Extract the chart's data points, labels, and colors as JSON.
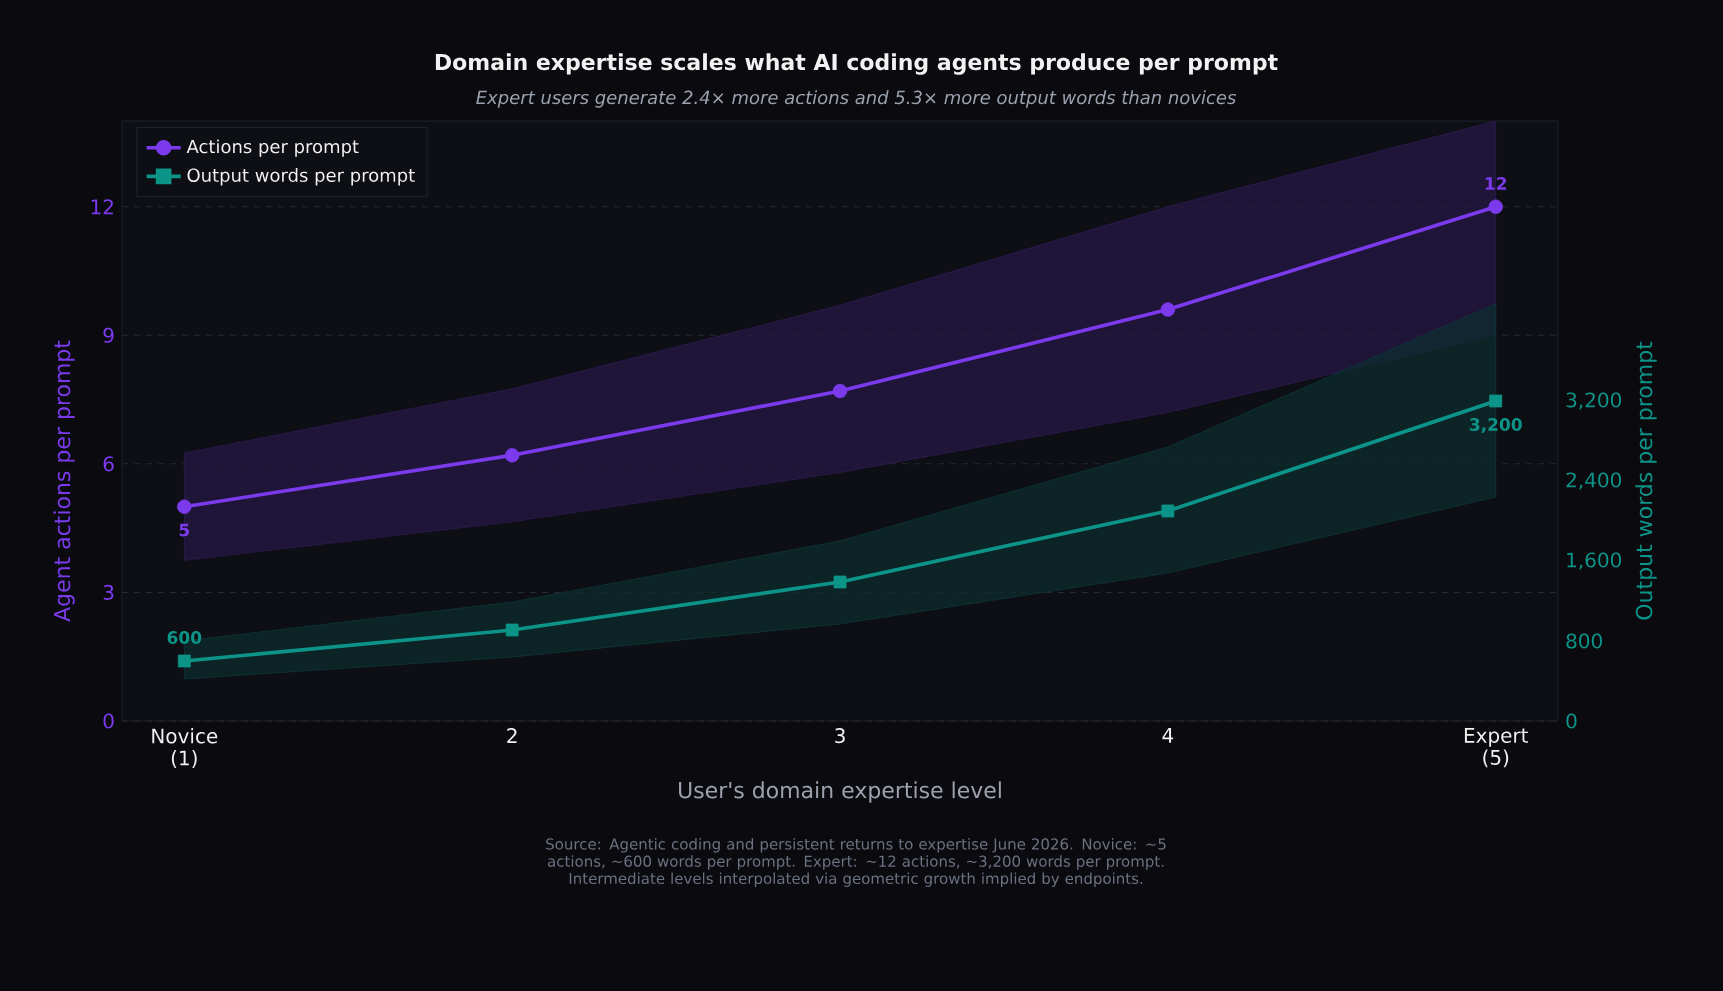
{
  "chart_data": {
    "type": "line",
    "title": "Domain expertise scales what AI coding agents produce per prompt",
    "subtitle": "Expert users generate 2.4× more actions and 5.3× more output words than novices",
    "xlabel": "User's domain expertise level",
    "ylabel": "Agent actions per prompt",
    "y2label": "Output words per prompt",
    "categories": [
      "Novice (1)",
      "2",
      "3",
      "4",
      "Expert (5)"
    ],
    "series": [
      {
        "name": "Actions per prompt",
        "color": "#7c3aed",
        "marker": "circle",
        "values": [
          5,
          6.2,
          7.7,
          9.6,
          12
        ],
        "lower": [
          3.75,
          4.65,
          5.8,
          7.2,
          9.0
        ],
        "upper": [
          6.25,
          7.75,
          9.7,
          12.0,
          14.0
        ],
        "value_labels": [
          "5",
          null,
          null,
          null,
          "12"
        ]
      },
      {
        "name": "Output words per prompt",
        "color": "#0d9488",
        "marker": "square",
        "axis": "y2",
        "values": [
          600,
          910,
          1390,
          2100,
          3200
        ],
        "lower": [
          420,
          640,
          970,
          1480,
          2240
        ],
        "upper": [
          800,
          1190,
          1800,
          2740,
          4170
        ],
        "value_labels": [
          "600",
          null,
          null,
          null,
          "3,200"
        ]
      }
    ],
    "ylim": [
      0,
      14
    ],
    "yticks": [
      0,
      3,
      6,
      9,
      12
    ],
    "y2lim": [
      0,
      6000
    ],
    "y2ticks": [
      0,
      800,
      {
        "value": 1600,
        "label": "1,600"
      },
      {
        "value": 2400,
        "label": "2,400"
      },
      {
        "value": 3200,
        "label": "3,200"
      }
    ],
    "grid": "y",
    "legend": "top left",
    "line_style": "solid",
    "annotations": [
      "Source: Agentic coding and persistent returns to expertise June 2026. Novice: ~5 actions, ~600 words per prompt. Expert: ~12 actions, ~3,200 words per prompt. Intermediate levels interpolated via geometric growth implied by endpoints."
    ]
  }
}
